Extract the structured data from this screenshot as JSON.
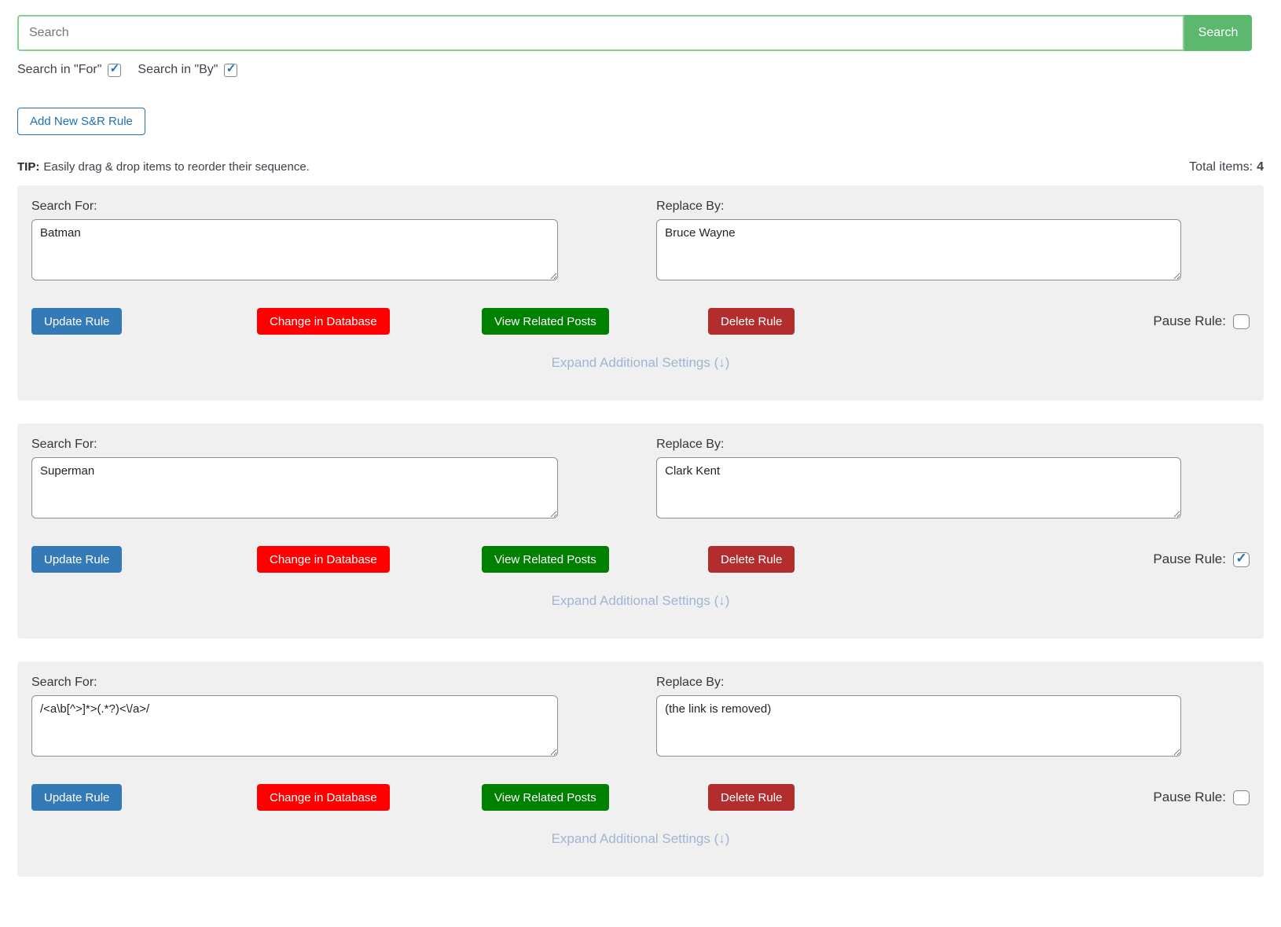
{
  "search": {
    "placeholder": "Search",
    "button_label": "Search",
    "in_for_label": "Search in \"For\"",
    "in_for_checked": true,
    "in_by_label": "Search in \"By\"",
    "in_by_checked": true
  },
  "toolbar": {
    "add_rule_label": "Add New S&R Rule"
  },
  "tip": {
    "label": "TIP:",
    "text": "Easily drag & drop items to reorder their sequence."
  },
  "totals": {
    "label": "Total items:",
    "value": "4"
  },
  "labels": {
    "search_for": "Search For:",
    "replace_by": "Replace By:",
    "update_rule": "Update Rule",
    "change_in_database": "Change in Database",
    "view_related_posts": "View Related Posts",
    "delete_rule": "Delete Rule",
    "pause_rule": "Pause Rule:",
    "expand_settings": "Expand Additional Settings (↓)"
  },
  "rules": [
    {
      "search_for": "Batman",
      "replace_by": "Bruce Wayne",
      "paused": false
    },
    {
      "search_for": "Superman",
      "replace_by": "Clark Kent",
      "paused": true
    },
    {
      "search_for": "/<a\\b[^>]*>(.*?)<\\/a>/",
      "replace_by": "(the link is removed)",
      "paused": false
    }
  ],
  "colors": {
    "accent_green": "#5cb86e",
    "input_border_green": "#83d290",
    "primary_blue": "#337ab7",
    "bright_red": "#ff0000",
    "action_green": "#008000",
    "delete_red": "#b32d2e",
    "expand_link_blue": "#9eb6d4",
    "checkbox_check_blue": "#2271b1"
  }
}
